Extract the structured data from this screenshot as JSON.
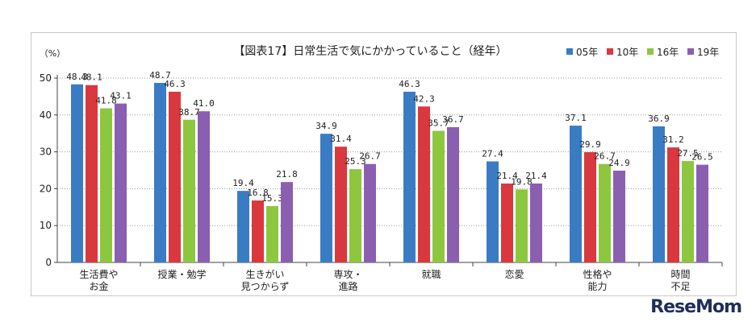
{
  "chart_data": {
    "type": "bar",
    "title": "【図表17】日常生活で気にかかっていること（経年）",
    "unit_label": "（%）",
    "categories": [
      [
        "生活費や",
        "お金"
      ],
      [
        "授業・勉学"
      ],
      [
        "生きがい",
        "見つからず"
      ],
      [
        "専攻・",
        "進路"
      ],
      [
        "就職"
      ],
      [
        "恋愛"
      ],
      [
        "性格や",
        "能力"
      ],
      [
        "時間",
        "不足"
      ]
    ],
    "series": [
      {
        "name": "05年",
        "color": "#3a7cc4",
        "values": [
          48.3,
          48.7,
          19.4,
          34.9,
          46.3,
          27.4,
          37.1,
          36.9
        ]
      },
      {
        "name": "10年",
        "color": "#d9383e",
        "values": [
          48.1,
          46.3,
          16.8,
          31.4,
          42.3,
          21.4,
          29.9,
          31.2
        ]
      },
      {
        "name": "16年",
        "color": "#8dc63f",
        "values": [
          41.8,
          38.7,
          15.3,
          25.3,
          35.7,
          19.8,
          26.7,
          27.5
        ]
      },
      {
        "name": "19年",
        "color": "#8a5fb0",
        "values": [
          43.1,
          41.0,
          21.8,
          26.7,
          36.7,
          21.4,
          24.9,
          26.5
        ]
      }
    ],
    "ylim": [
      0,
      50
    ],
    "yticks": [
      0,
      10,
      20,
      30,
      40,
      50
    ],
    "grid": "horizontal-dotted",
    "legend_position": "top-right"
  },
  "watermark": {
    "part1": "Rese",
    "part2": "Mom"
  }
}
